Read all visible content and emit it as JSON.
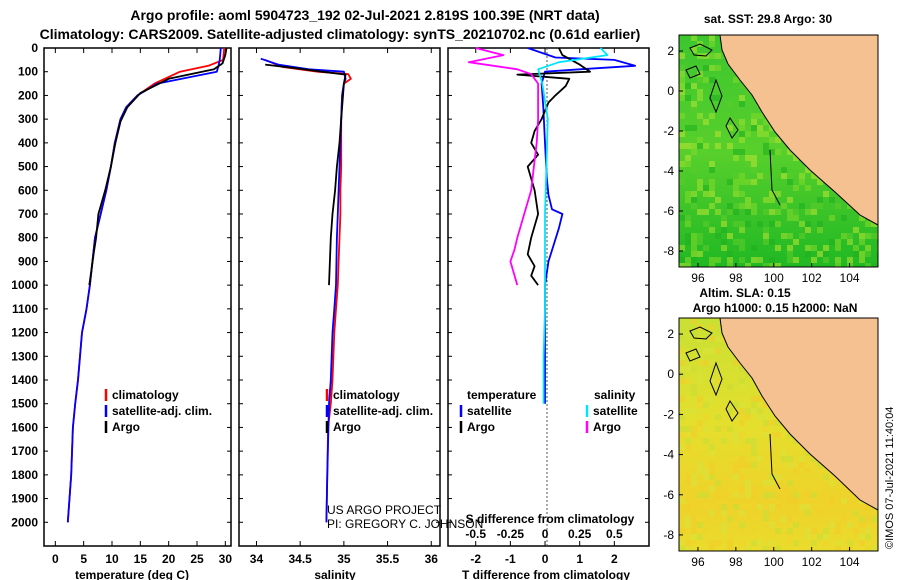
{
  "title_line1": "Argo profile: aoml 5904723_192 02-Jul-2021 2.819S 100.39E (NRT data)",
  "title_line2": "Climatology: CARS2009. Satellite-adjusted climatology: synTS_20210702.nc (0.61d earlier)",
  "credit_line1": "US ARGO PROJECT",
  "credit_line2": "PI: GREGORY C. JOHNSON",
  "timestamp": "©IMOS 07-Jul-2021 11:40:04",
  "colors": {
    "climatology": "#ff0000",
    "satellite": "#0000ff",
    "argo": "#000000",
    "sal_satellite": "#00e5ff",
    "sal_argo": "#ff00ff",
    "land": "#f5c190",
    "sst_sea": "#22c022",
    "sla_sea": "#e7df2a"
  },
  "chart_data": [
    {
      "id": "temperature",
      "type": "line",
      "xlabel": "temperature (deg C)",
      "xlim": [
        -2,
        31
      ],
      "xticks": [
        0,
        5,
        10,
        15,
        20,
        25,
        30
      ],
      "xtick_labels": [
        "0",
        "5",
        "10",
        "15",
        "20",
        "25",
        "30"
      ],
      "ylim": [
        0,
        2100
      ],
      "yticks": [
        0,
        100,
        200,
        300,
        400,
        500,
        600,
        700,
        800,
        900,
        1000,
        1100,
        1200,
        1300,
        1400,
        1500,
        1600,
        1700,
        1800,
        1900,
        2000
      ],
      "ytick_labels": [
        "0",
        "100",
        "200",
        "300",
        "400",
        "500",
        "600",
        "700",
        "800",
        "900",
        "1000",
        "1100",
        "1200",
        "1300",
        "1400",
        "1500",
        "1600",
        "1700",
        "1800",
        "1900",
        "2000"
      ],
      "legend": [
        "climatology",
        "satellite-adj. clim.",
        "Argo"
      ],
      "series": [
        {
          "name": "climatology",
          "color": "#ff0000",
          "x": [
            29.8,
            29.6,
            27.0,
            22.0,
            17.5,
            14.5,
            12.5,
            11.5,
            10.5,
            9.8,
            9.0,
            8.0,
            7.0,
            6.1,
            5.5,
            4.7,
            4.0,
            3.5,
            3.1,
            2.8,
            2.5,
            2.2
          ],
          "y": [
            0,
            50,
            75,
            100,
            150,
            200,
            250,
            300,
            400,
            500,
            600,
            700,
            800,
            1000,
            1100,
            1200,
            1400,
            1500,
            1600,
            1800,
            1900,
            2000
          ]
        },
        {
          "name": "satellite-adj. clim.",
          "color": "#0000ff",
          "x": [
            29.2,
            29.0,
            28.8,
            28.5,
            18.0,
            14.5,
            12.5,
            11.5,
            10.5,
            9.8,
            9.0,
            8.0,
            7.0,
            6.1,
            5.5,
            4.7,
            4.0,
            3.5,
            3.1,
            2.8,
            2.5,
            2.2
          ],
          "y": [
            0,
            50,
            75,
            100,
            150,
            200,
            250,
            300,
            400,
            500,
            600,
            700,
            800,
            1000,
            1100,
            1200,
            1400,
            1500,
            1600,
            1800,
            1900,
            2000
          ]
        },
        {
          "name": "Argo",
          "color": "#000000",
          "x": [
            30.2,
            30.0,
            29.5,
            28.0,
            20.0,
            15.0,
            12.7,
            11.5,
            10.6,
            9.8,
            8.8,
            7.6,
            7.2,
            6.8,
            6.3,
            6.0
          ],
          "y": [
            0,
            30,
            65,
            90,
            130,
            190,
            250,
            310,
            400,
            500,
            600,
            700,
            800,
            860,
            950,
            1000
          ]
        }
      ]
    },
    {
      "id": "salinity",
      "type": "line",
      "xlabel": "salinity",
      "xlim": [
        33.8,
        36.1
      ],
      "xticks": [
        34,
        34.5,
        35,
        35.5,
        36
      ],
      "xtick_labels": [
        "34",
        "34.5",
        "35",
        "35.5",
        "36"
      ],
      "ylim": [
        0,
        2100
      ],
      "legend": [
        "climatology",
        "satellite-adj. clim.",
        "Argo"
      ],
      "series": [
        {
          "name": "climatology",
          "color": "#ff0000",
          "x": [
            34.1,
            34.3,
            34.7,
            35.05,
            35.08,
            35.0,
            34.98,
            34.97,
            34.97,
            34.96,
            34.96,
            34.95,
            34.94,
            34.93,
            34.91,
            34.89,
            34.87,
            34.85,
            34.82,
            34.8
          ],
          "y": [
            50,
            80,
            100,
            110,
            130,
            150,
            200,
            300,
            500,
            600,
            700,
            800,
            900,
            1000,
            1100,
            1200,
            1400,
            1500,
            1600,
            2000
          ]
        },
        {
          "name": "satellite-adj. clim.",
          "color": "#0000ff",
          "x": [
            34.05,
            34.25,
            34.6,
            35.0,
            35.02,
            35.0,
            34.98,
            34.97,
            34.95,
            34.94,
            34.93,
            34.92,
            34.91,
            34.89,
            34.87,
            34.85,
            34.83,
            34.81,
            34.8
          ],
          "y": [
            45,
            70,
            90,
            100,
            130,
            150,
            200,
            300,
            500,
            600,
            700,
            800,
            1000,
            1100,
            1200,
            1400,
            1500,
            1800,
            2000
          ]
        },
        {
          "name": "Argo",
          "color": "#000000",
          "x": [
            34.1,
            34.45,
            34.75,
            35.02,
            35.0,
            34.97,
            34.95,
            34.92,
            34.9,
            34.87,
            34.85,
            34.84,
            34.83
          ],
          "y": [
            70,
            85,
            100,
            112,
            150,
            300,
            400,
            500,
            600,
            700,
            800,
            900,
            1000
          ]
        }
      ]
    },
    {
      "id": "difference",
      "type": "line",
      "xlabel": "T difference from climatology",
      "xlabel2": "S difference from climatology",
      "xlim": [
        -2.8,
        3.0
      ],
      "xticks": [
        -2,
        -1,
        0,
        1,
        2
      ],
      "xtick_labels": [
        "-2",
        "-1",
        "0",
        "1",
        "2"
      ],
      "xticks2": [
        -0.5,
        -0.25,
        0,
        0.25,
        0.5
      ],
      "xtick2_labels": [
        "-0.5",
        "-0.25",
        "0",
        "0.25",
        "0.5"
      ],
      "ylim": [
        0,
        2100
      ],
      "legend": [
        "temperature",
        "satellite",
        "Argo",
        "salinity",
        "satellite",
        "Argo"
      ],
      "series": [
        {
          "name": "temperature satellite",
          "color": "#0000ff",
          "x": [
            -0.5,
            0.3,
            2.0,
            2.6,
            1.0,
            0.0,
            -0.1,
            -0.05,
            0.0,
            0.05,
            0.1,
            0.2,
            0.5,
            0.4,
            0.1,
            0.0,
            0.0,
            0.0,
            0.0
          ],
          "y": [
            0,
            40,
            50,
            75,
            90,
            100,
            150,
            250,
            400,
            550,
            620,
            680,
            700,
            760,
            900,
            1000,
            1200,
            1400,
            1500
          ]
        },
        {
          "name": "temperature Argo",
          "color": "#000000",
          "x": [
            0.4,
            0.5,
            1.0,
            1.3,
            -0.8,
            0.7,
            0.6,
            0.3,
            0.1,
            -0.1,
            -0.3,
            -0.4,
            -0.2,
            -0.5,
            -0.3,
            -0.2,
            -0.4,
            -0.5,
            -0.3,
            -0.4,
            -0.2
          ],
          "y": [
            0,
            30,
            70,
            100,
            112,
            130,
            160,
            200,
            230,
            300,
            350,
            400,
            450,
            500,
            600,
            700,
            800,
            870,
            920,
            960,
            1000
          ]
        },
        {
          "name": "salinity satellite",
          "color": "#00e5ff",
          "x": [
            0.4,
            0.45,
            0.1,
            -0.05,
            -0.02,
            0.02,
            0.01,
            0.0,
            0.0,
            0.0,
            -0.01,
            -0.01
          ],
          "y": [
            0,
            30,
            60,
            90,
            150,
            300,
            500,
            700,
            900,
            1100,
            1300,
            1500
          ]
        },
        {
          "name": "salinity Argo",
          "color": "#ff00ff",
          "x": [
            -0.5,
            -0.3,
            -0.55,
            -0.2,
            -0.1,
            -0.05,
            -0.05,
            -0.06,
            -0.08,
            -0.1,
            -0.15,
            -0.2,
            -0.22,
            -0.25,
            -0.2
          ],
          "y": [
            0,
            30,
            60,
            90,
            110,
            150,
            300,
            400,
            500,
            600,
            700,
            800,
            850,
            900,
            1000
          ]
        }
      ]
    },
    {
      "id": "sst_map",
      "type": "heatmap",
      "title": "sat. SST: 29.8 Argo: 30",
      "xlim": [
        95,
        105.5
      ],
      "ylim": [
        -8.8,
        2.8
      ],
      "xticks": [
        96,
        98,
        100,
        102,
        104
      ],
      "xtick_labels": [
        "96",
        "98",
        "100",
        "102",
        "104"
      ],
      "yticks": [
        2,
        0,
        -2,
        -4,
        -6,
        -8
      ],
      "ytick_labels": [
        "2",
        "0",
        "-2",
        "-4",
        "-6",
        "-8"
      ]
    },
    {
      "id": "sla_map",
      "type": "heatmap",
      "title": "Altim. SLA: 0.15",
      "subtitle": "Argo h1000: 0.15 h2000: NaN",
      "xlim": [
        95,
        105.5
      ],
      "ylim": [
        -8.8,
        2.8
      ],
      "xticks": [
        96,
        98,
        100,
        102,
        104
      ],
      "xtick_labels": [
        "96",
        "98",
        "100",
        "102",
        "104"
      ],
      "yticks": [
        2,
        0,
        -2,
        -4,
        -6,
        -8
      ],
      "ytick_labels": [
        "2",
        "0",
        "-2",
        "-4",
        "-6",
        "-8"
      ]
    }
  ]
}
